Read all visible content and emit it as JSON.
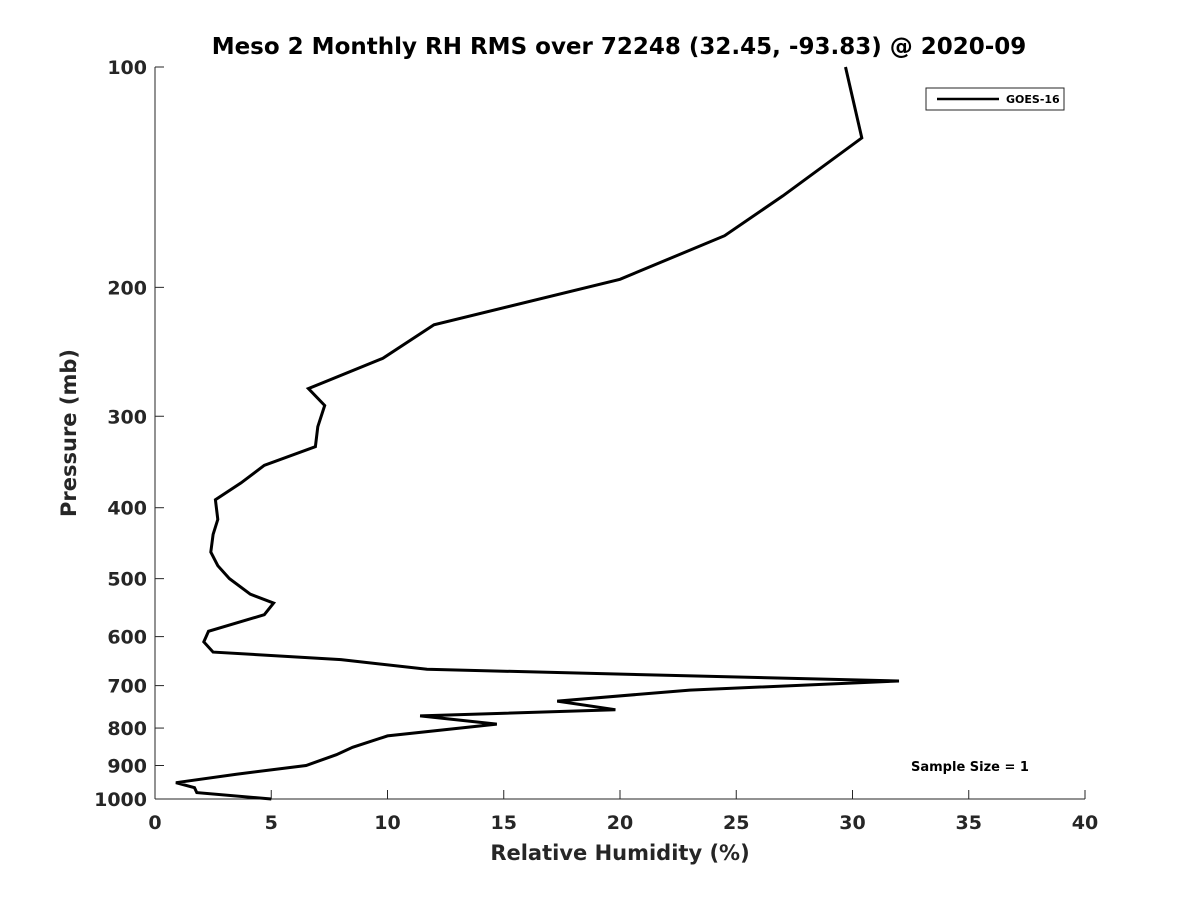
{
  "chart_data": {
    "type": "line",
    "title": "Meso 2 Monthly RH RMS over 72248 (32.45, -93.83) @ 2020-09",
    "xlabel": "Relative Humidity (%)",
    "ylabel": "Pressure (mb)",
    "xlim": [
      0,
      40
    ],
    "ylim": [
      100,
      1000
    ],
    "yscale": "log",
    "y_reversed": true,
    "xticks": [
      0,
      5,
      10,
      15,
      20,
      25,
      30,
      35,
      40
    ],
    "yticks": [
      100,
      200,
      300,
      400,
      500,
      600,
      700,
      800,
      900,
      1000
    ],
    "grid": false,
    "legend_position": "top-right",
    "annotation": "Sample Size = 1",
    "series": [
      {
        "name": "GOES-16",
        "color": "#000000",
        "x": [
          29.7,
          30.4,
          27.0,
          24.5,
          20.0,
          12.0,
          9.8,
          6.6,
          7.3,
          7.0,
          6.9,
          4.7,
          3.7,
          2.6,
          2.7,
          2.5,
          2.4,
          2.7,
          3.2,
          4.1,
          5.1,
          4.7,
          2.3,
          2.1,
          2.5,
          8.0,
          11.7,
          32.0,
          23.0,
          17.3,
          19.8,
          11.4,
          14.7,
          10.0,
          8.5,
          7.8,
          6.5,
          3.5,
          0.9,
          1.7,
          1.8,
          5.0
        ],
        "y": [
          100,
          125,
          150,
          170,
          195,
          225,
          250,
          275,
          290,
          310,
          330,
          350,
          370,
          390,
          415,
          435,
          460,
          480,
          500,
          525,
          540,
          560,
          590,
          610,
          630,
          645,
          665,
          690,
          710,
          735,
          755,
          770,
          790,
          820,
          850,
          870,
          900,
          925,
          950,
          965,
          980,
          1000
        ]
      }
    ]
  }
}
